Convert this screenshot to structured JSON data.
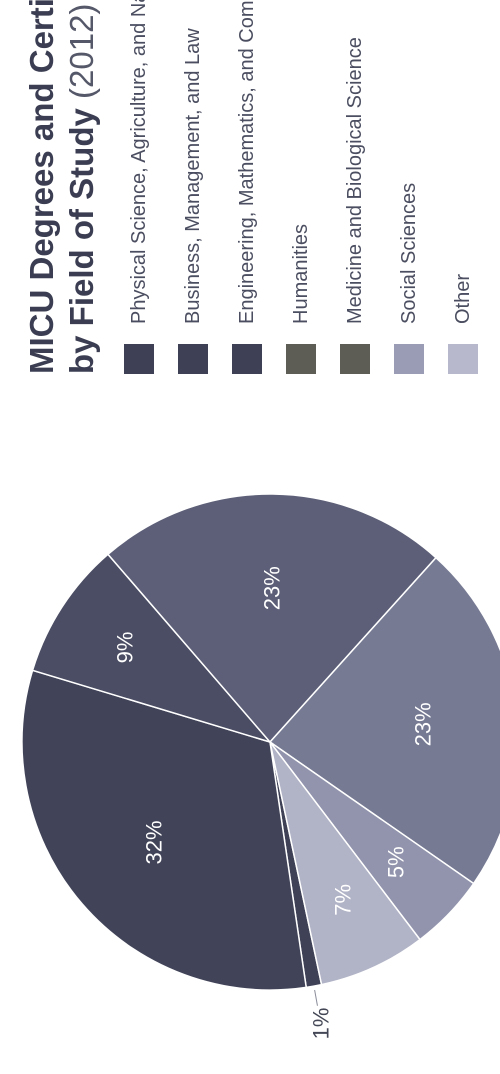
{
  "chart_data": {
    "type": "pie",
    "title_bold": "MICU Degrees and Certificates",
    "title_bold_line2": "by Field of Study",
    "title_year": "(2012)",
    "slices": [
      {
        "label": "Physical Science, Agriculture, and Natural Resources",
        "value": 1,
        "display": "1%",
        "color": "#3f4257"
      },
      {
        "label": "Business, Management, and Law",
        "value": 32,
        "display": "32%",
        "color": "#414459"
      },
      {
        "label": "Engineering, Mathematics, and Computer Sciences",
        "value": 9,
        "display": "9%",
        "color": "#4a4d63"
      },
      {
        "label": "Humanities",
        "value": 23,
        "display": "23%",
        "color": "#5c5f77"
      },
      {
        "label": "Medicine and Biological Science",
        "value": 23,
        "display": "23%",
        "color": "#767a93"
      },
      {
        "label": "Social Sciences",
        "value": 5,
        "display": "5%",
        "color": "#9194ac"
      },
      {
        "label": "Other",
        "value": 7,
        "display": "7%",
        "color": "#b1b3c6"
      }
    ],
    "legend": [
      {
        "label": "Physical Science, Agriculture, and Natural Resources",
        "color": "#3e4155"
      },
      {
        "label": "Business, Management, and Law",
        "color": "#3e4155"
      },
      {
        "label": "Engineering, Mathematics, and Computer Sciences",
        "color": "#3e4155"
      },
      {
        "label": "Humanities",
        "color": "#5e5d55"
      },
      {
        "label": "Medicine and Biological Science",
        "color": "#5e5d55"
      },
      {
        "label": "Social Sciences",
        "color": "#9a9bb4"
      },
      {
        "label": "Other",
        "color": "#b7b8cb"
      }
    ]
  }
}
